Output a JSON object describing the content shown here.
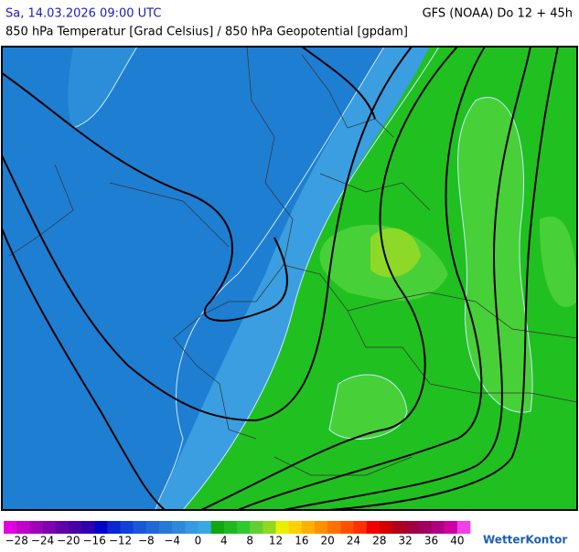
{
  "header": {
    "valid_time": "Sa, 14.03.2026 09:00 UTC",
    "model_run": "GFS (NOAA) Do 12 + 45h",
    "title": "850 hPa Temperatur [Grad Celsius] / 850 hPa Geopotential [gpdam]"
  },
  "colorbar": {
    "labels": [
      "−28",
      "−24",
      "−20",
      "−16",
      "−12",
      "−8",
      "−4",
      "0",
      "4",
      "8",
      "12",
      "16",
      "20",
      "24",
      "28",
      "32",
      "36",
      "40"
    ],
    "colors": [
      "#e000e0",
      "#c000c8",
      "#a000b8",
      "#8000b0",
      "#6000a8",
      "#4800a8",
      "#3000b0",
      "#0000c8",
      "#0828d0",
      "#1040d8",
      "#1858d8",
      "#2068d8",
      "#2878d8",
      "#3088dc",
      "#3898e0",
      "#38a8e0",
      "#10a810",
      "#20b820",
      "#30c830",
      "#60d030",
      "#90d820",
      "#e8f000",
      "#ffd000",
      "#ffb000",
      "#ff9000",
      "#ff7000",
      "#ff5000",
      "#ff3000",
      "#f00000",
      "#d00000",
      "#b00020",
      "#a00040",
      "#a00060",
      "#b00080",
      "#d000a0",
      "#f040e8"
    ]
  },
  "logo": "WetterKontor"
}
